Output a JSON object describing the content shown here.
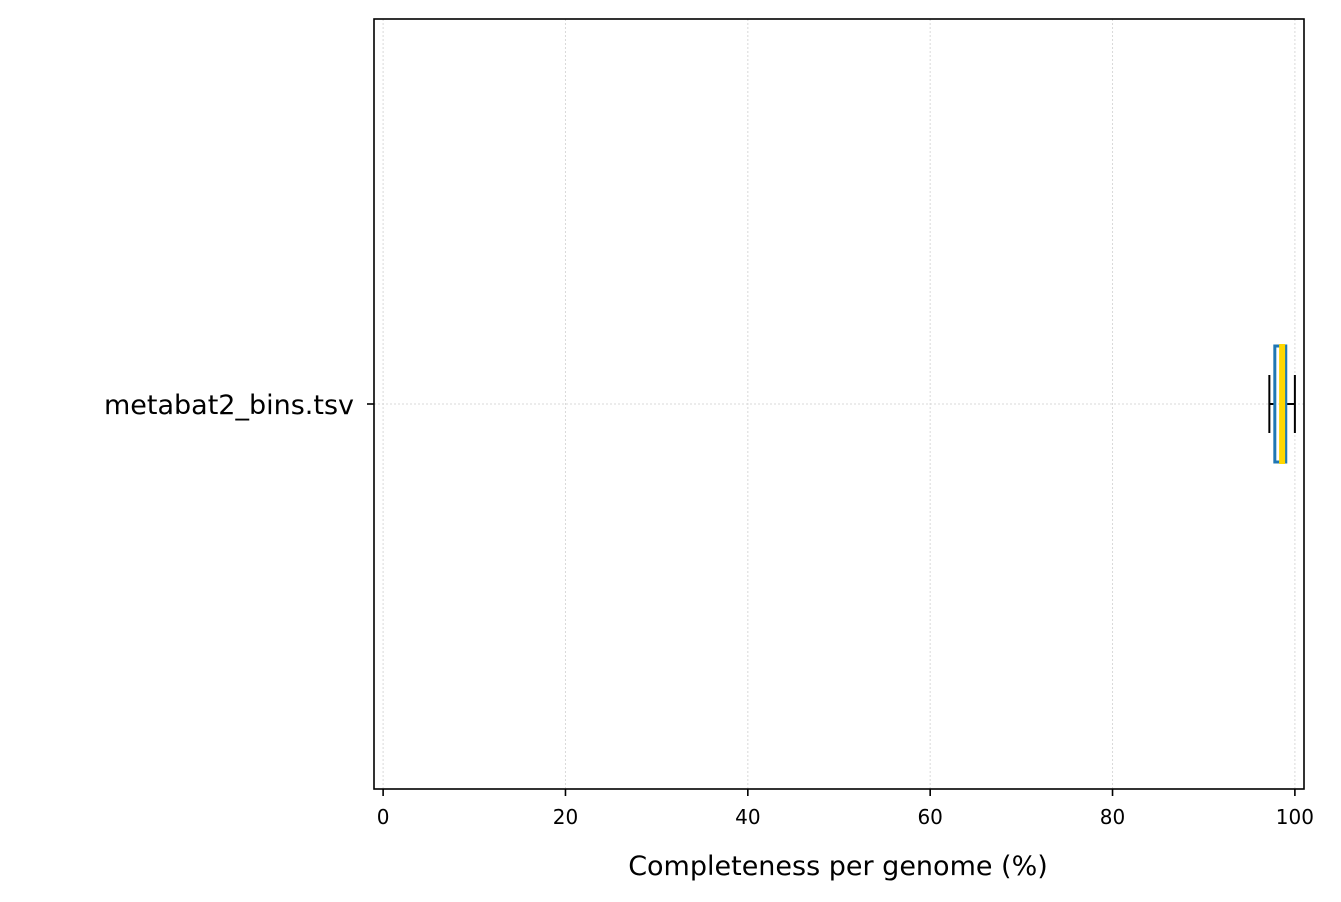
{
  "chart_data": {
    "type": "boxplot",
    "orientation": "horizontal",
    "title": "",
    "xlabel": "Completeness per genome (%)",
    "ylabel": "",
    "xlim": [
      -1,
      101
    ],
    "xticks": [
      0,
      20,
      40,
      60,
      80,
      100
    ],
    "xtick_labels": [
      "0",
      "20",
      "40",
      "60",
      "80",
      "100"
    ],
    "grid": true,
    "categories": [
      "metabat2_bins.tsv"
    ],
    "boxes": [
      {
        "category": "metabat2_bins.tsv",
        "whisker_low": 97.2,
        "q1": 97.8,
        "median": 98.6,
        "q3": 99.0,
        "whisker_high": 100
      }
    ],
    "colors": {
      "box": "#1f77b4",
      "median": "#ffd700",
      "whisker": "#000000",
      "grid": "#d9d9d9"
    }
  }
}
